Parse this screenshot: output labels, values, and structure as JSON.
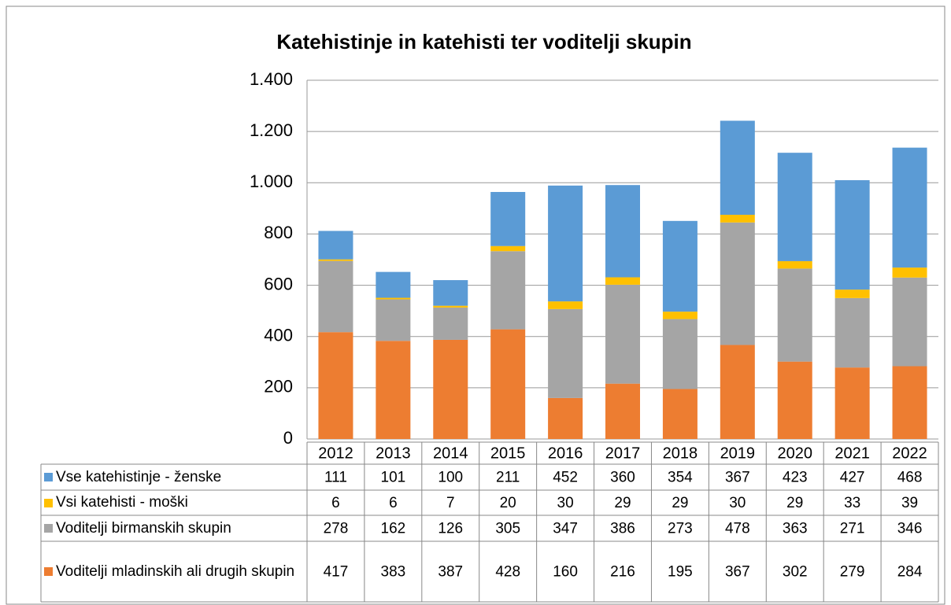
{
  "chart_data": {
    "type": "stacked_bar",
    "title": "Katehistinje in katehisti ter voditelji skupin",
    "categories": [
      "2012",
      "2013",
      "2014",
      "2015",
      "2016",
      "2017",
      "2018",
      "2019",
      "2020",
      "2021",
      "2022"
    ],
    "series": [
      {
        "name": "Voditelji mladinskih ali drugih skupin",
        "color": "#ed7d31",
        "values": [
          417,
          383,
          387,
          428,
          160,
          216,
          195,
          367,
          302,
          279,
          284
        ]
      },
      {
        "name": "Voditelji birmanskih skupin",
        "color": "#a5a5a5",
        "values": [
          278,
          162,
          126,
          305,
          347,
          386,
          273,
          478,
          363,
          271,
          346
        ]
      },
      {
        "name": "Vsi katehisti - moški",
        "color": "#ffc000",
        "values": [
          6,
          6,
          7,
          20,
          30,
          29,
          29,
          30,
          29,
          33,
          39
        ]
      },
      {
        "name": "Vse katehistinje - ženske",
        "color": "#5b9bd5",
        "values": [
          111,
          101,
          100,
          211,
          452,
          360,
          354,
          367,
          423,
          427,
          468
        ]
      }
    ],
    "ylim": [
      0,
      1400
    ],
    "yticks": [
      0,
      200,
      400,
      600,
      800,
      {
        "value": 1000,
        "label": "1.000"
      },
      {
        "value": 1200,
        "label": "1.200"
      },
      {
        "value": 1400,
        "label": "1.400"
      }
    ],
    "grid": true
  }
}
